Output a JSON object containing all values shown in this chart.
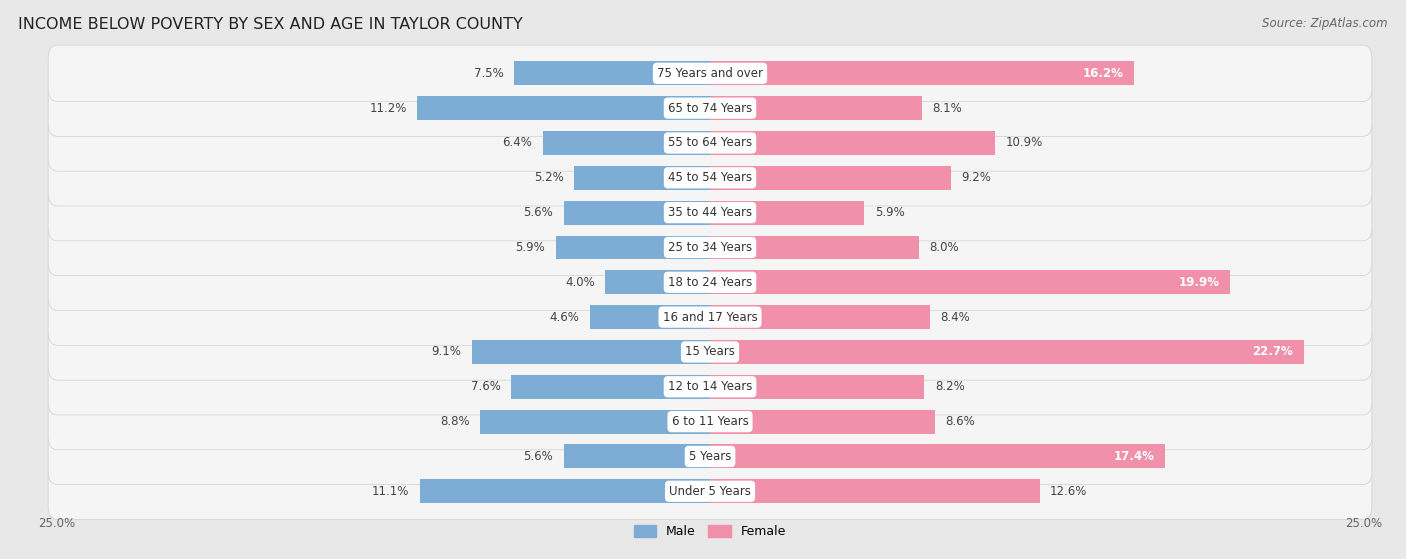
{
  "title": "INCOME BELOW POVERTY BY SEX AND AGE IN TAYLOR COUNTY",
  "source": "Source: ZipAtlas.com",
  "categories": [
    "Under 5 Years",
    "5 Years",
    "6 to 11 Years",
    "12 to 14 Years",
    "15 Years",
    "16 and 17 Years",
    "18 to 24 Years",
    "25 to 34 Years",
    "35 to 44 Years",
    "45 to 54 Years",
    "55 to 64 Years",
    "65 to 74 Years",
    "75 Years and over"
  ],
  "male_values": [
    11.1,
    5.6,
    8.8,
    7.6,
    9.1,
    4.6,
    4.0,
    5.9,
    5.6,
    5.2,
    6.4,
    11.2,
    7.5
  ],
  "female_values": [
    12.6,
    17.4,
    8.6,
    8.2,
    22.7,
    8.4,
    19.9,
    8.0,
    5.9,
    9.2,
    10.9,
    8.1,
    16.2
  ],
  "male_color": "#7dadd4",
  "female_color": "#f090aa",
  "male_label": "Male",
  "female_label": "Female",
  "xlim": 25.0,
  "background_color": "#e8e8e8",
  "row_bg_color": "#f5f5f5",
  "title_fontsize": 11.5,
  "source_fontsize": 8.5,
  "label_fontsize": 8.5,
  "value_fontsize": 8.5,
  "category_fontsize": 8.5
}
